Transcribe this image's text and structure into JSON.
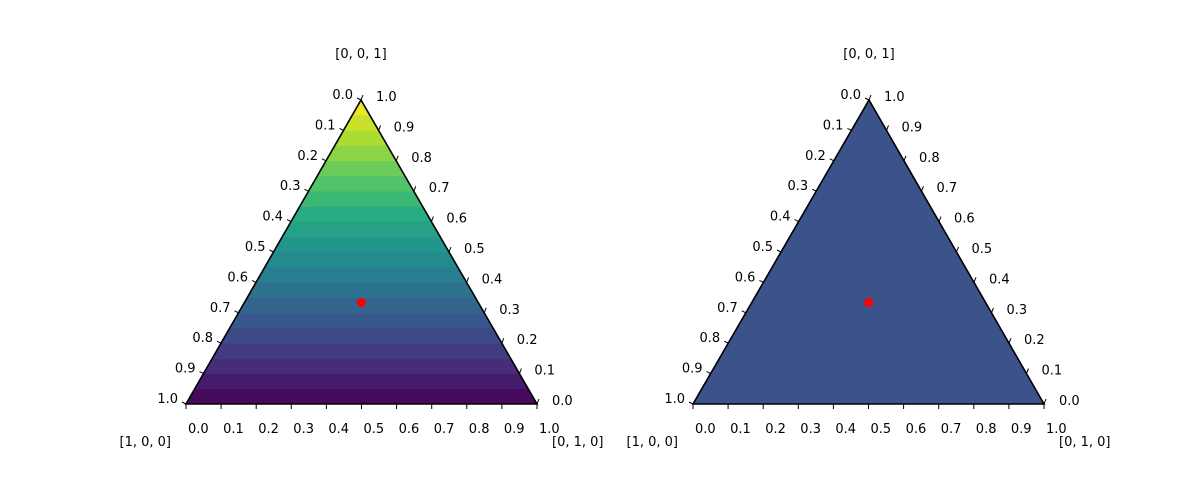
{
  "chart_data": [
    {
      "type": "ternary",
      "colormap": "viridis",
      "fill": "gradient",
      "n_bands": 20,
      "vertex_labels": {
        "left": "[1, 0, 0]",
        "right": "[0, 1, 0]",
        "top": "[0, 0, 1]"
      },
      "ticks": [
        "0.0",
        "0.1",
        "0.2",
        "0.3",
        "0.4",
        "0.5",
        "0.6",
        "0.7",
        "0.8",
        "0.9",
        "1.0"
      ],
      "point": {
        "a": 0.333,
        "b": 0.333,
        "c": 0.334,
        "color": "#ff0000"
      }
    },
    {
      "type": "ternary",
      "colormap": "viridis",
      "fill": "solid",
      "fill_color": "#3b528b",
      "vertex_labels": {
        "left": "[1, 0, 0]",
        "right": "[0, 1, 0]",
        "top": "[0, 0, 1]"
      },
      "ticks": [
        "0.0",
        "0.1",
        "0.2",
        "0.3",
        "0.4",
        "0.5",
        "0.6",
        "0.7",
        "0.8",
        "0.9",
        "1.0"
      ],
      "point": {
        "a": 0.333,
        "b": 0.333,
        "c": 0.334,
        "color": "#ff0000"
      }
    }
  ]
}
